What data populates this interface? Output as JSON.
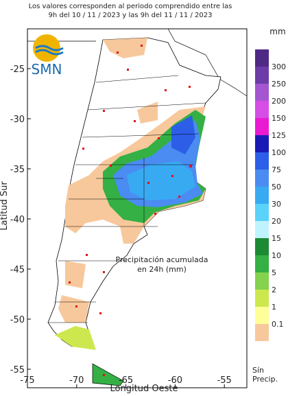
{
  "header": {
    "title_lines": [
      "Los valores corresponden al periodo comprendido entre las",
      "9h del 10 / 11 / 2023  y las 9h del 11 / 11 / 2023"
    ]
  },
  "logo": {
    "text": "SMN"
  },
  "axes": {
    "x_label": "Longitud Oeste",
    "y_label": "Latitud Sur",
    "x_ticks": [
      "-75",
      "-70",
      "-65",
      "-60",
      "-55"
    ],
    "y_ticks": [
      "-25",
      "-30",
      "-35",
      "-40",
      "-45",
      "-50",
      "-55"
    ]
  },
  "annotation": {
    "lines": [
      "Precipitación acumulada",
      "en 24h (mm)"
    ]
  },
  "legend": {
    "unit": "mm",
    "labels": [
      "300",
      "250",
      "200",
      "150",
      "125",
      "100",
      "75",
      "50",
      "30",
      "20",
      "15",
      "10",
      "5",
      "2",
      "1",
      "0.1"
    ],
    "colors": [
      "#4e2a84",
      "#6c3ca8",
      "#a456d0",
      "#d64ee6",
      "#ea1ad2",
      "#1a1ab4",
      "#2c5ee8",
      "#4a8cf2",
      "#38aaf2",
      "#5ad2fa",
      "#bff4ff",
      "#1c8a32",
      "#34b044",
      "#84d24e",
      "#cce84e",
      "#ffff9a",
      "#f7c89c"
    ],
    "no_precip_lines": [
      "Sín",
      "Precip."
    ]
  }
}
